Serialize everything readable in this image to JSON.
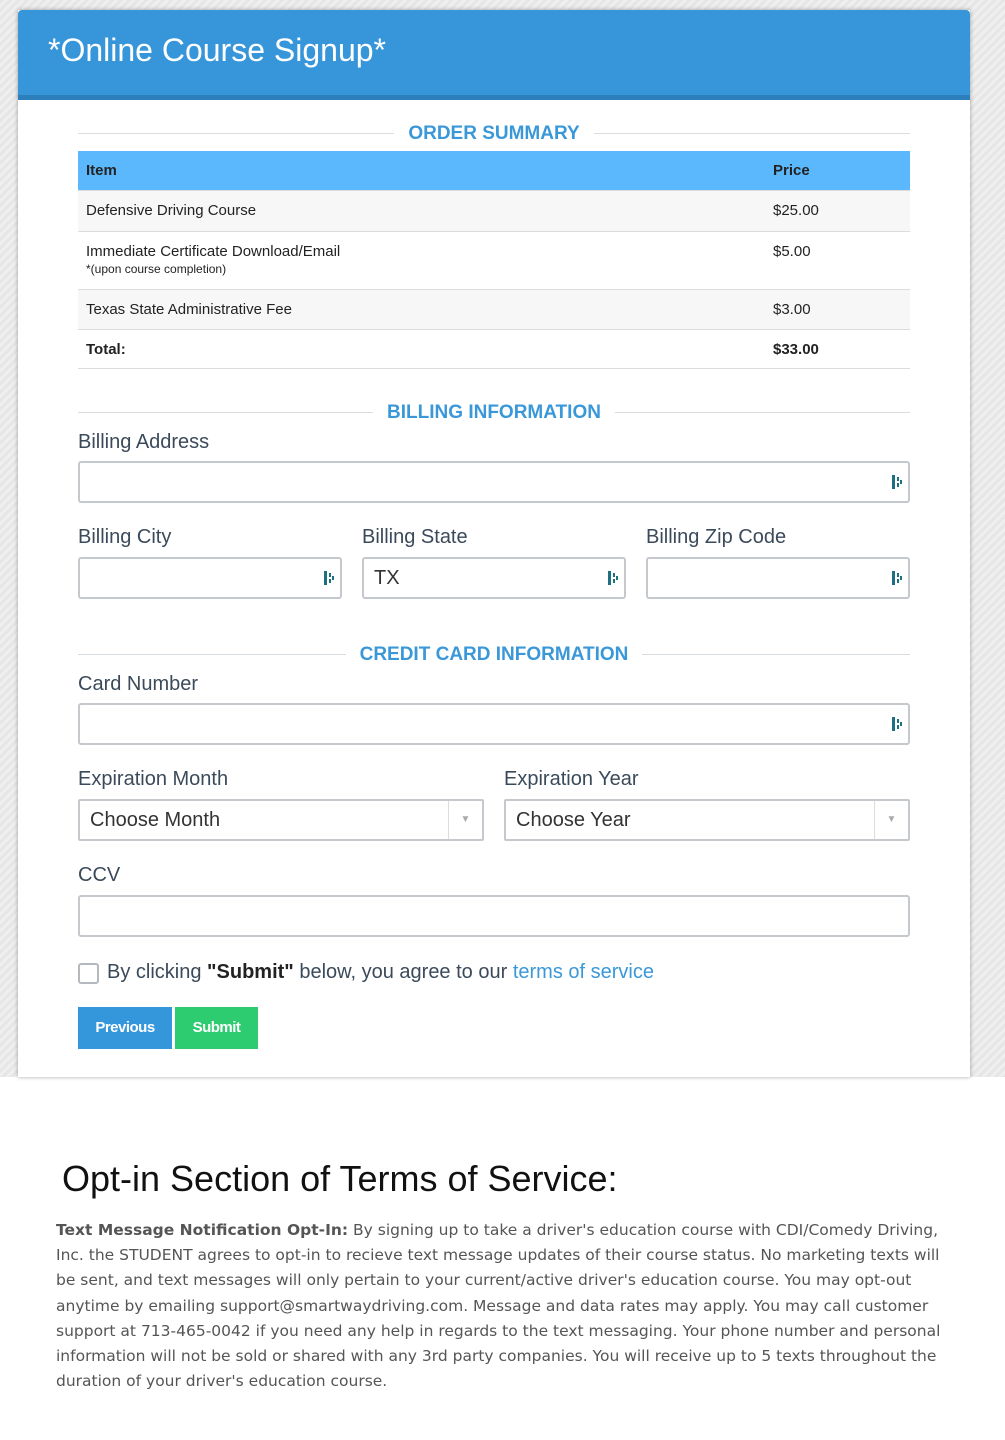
{
  "header": {
    "title": "*Online Course Signup*"
  },
  "order_summary": {
    "heading": "ORDER SUMMARY",
    "columns": [
      "Item",
      "Price"
    ],
    "rows": [
      {
        "item": "Defensive Driving Course",
        "price": "$25.00"
      },
      {
        "item": "Immediate Certificate Download/Email",
        "note": "*(upon course completion)",
        "price": "$5.00"
      },
      {
        "item": "Texas State Administrative Fee",
        "price": "$3.00"
      },
      {
        "item": "Total:",
        "price": "$33.00"
      }
    ]
  },
  "billing": {
    "heading": "BILLING INFORMATION",
    "address_label": "Billing Address",
    "address_value": "",
    "city_label": "Billing City",
    "city_value": "",
    "state_label": "Billing State",
    "state_value": "TX",
    "zip_label": "Billing Zip Code",
    "zip_value": ""
  },
  "credit_card": {
    "heading": "CREDIT CARD INFORMATION",
    "card_label": "Card Number",
    "card_value": "",
    "month_label": "Expiration Month",
    "month_value": "Choose Month",
    "year_label": "Expiration Year",
    "year_value": "Choose Year",
    "ccv_label": "CCV",
    "ccv_value": ""
  },
  "agreement": {
    "checked": false,
    "prefix": "By clicking ",
    "bold": "\"Submit\"",
    "middle": " below, you agree to our ",
    "link": "terms of service"
  },
  "buttons": {
    "previous": "Previous",
    "submit": "Submit"
  },
  "colors": {
    "header": "#3796d9",
    "previous": "#3497dc",
    "submit": "#2ecc71",
    "accent": "#3a98d9"
  },
  "tos": {
    "title": "Opt-in Section of Terms of Service:",
    "bold": "Text Message Notification Opt-In:",
    "body": " By signing up to take a driver's education course with CDI/Comedy Driving, Inc. the STUDENT agrees to opt-in to recieve text message updates of their course status. No marketing texts will be sent, and text messages will only pertain to your current/active driver's education course. You may opt-out anytime by emailing support@smartwaydriving.com. Message and data rates may apply. You may call customer support at 713-465-0042 if you need any help in regards to the text messaging. Your phone number and personal information will not be sold or shared with any 3rd party companies. You will receive up to 5 texts throughout the duration of your driver's education course."
  }
}
